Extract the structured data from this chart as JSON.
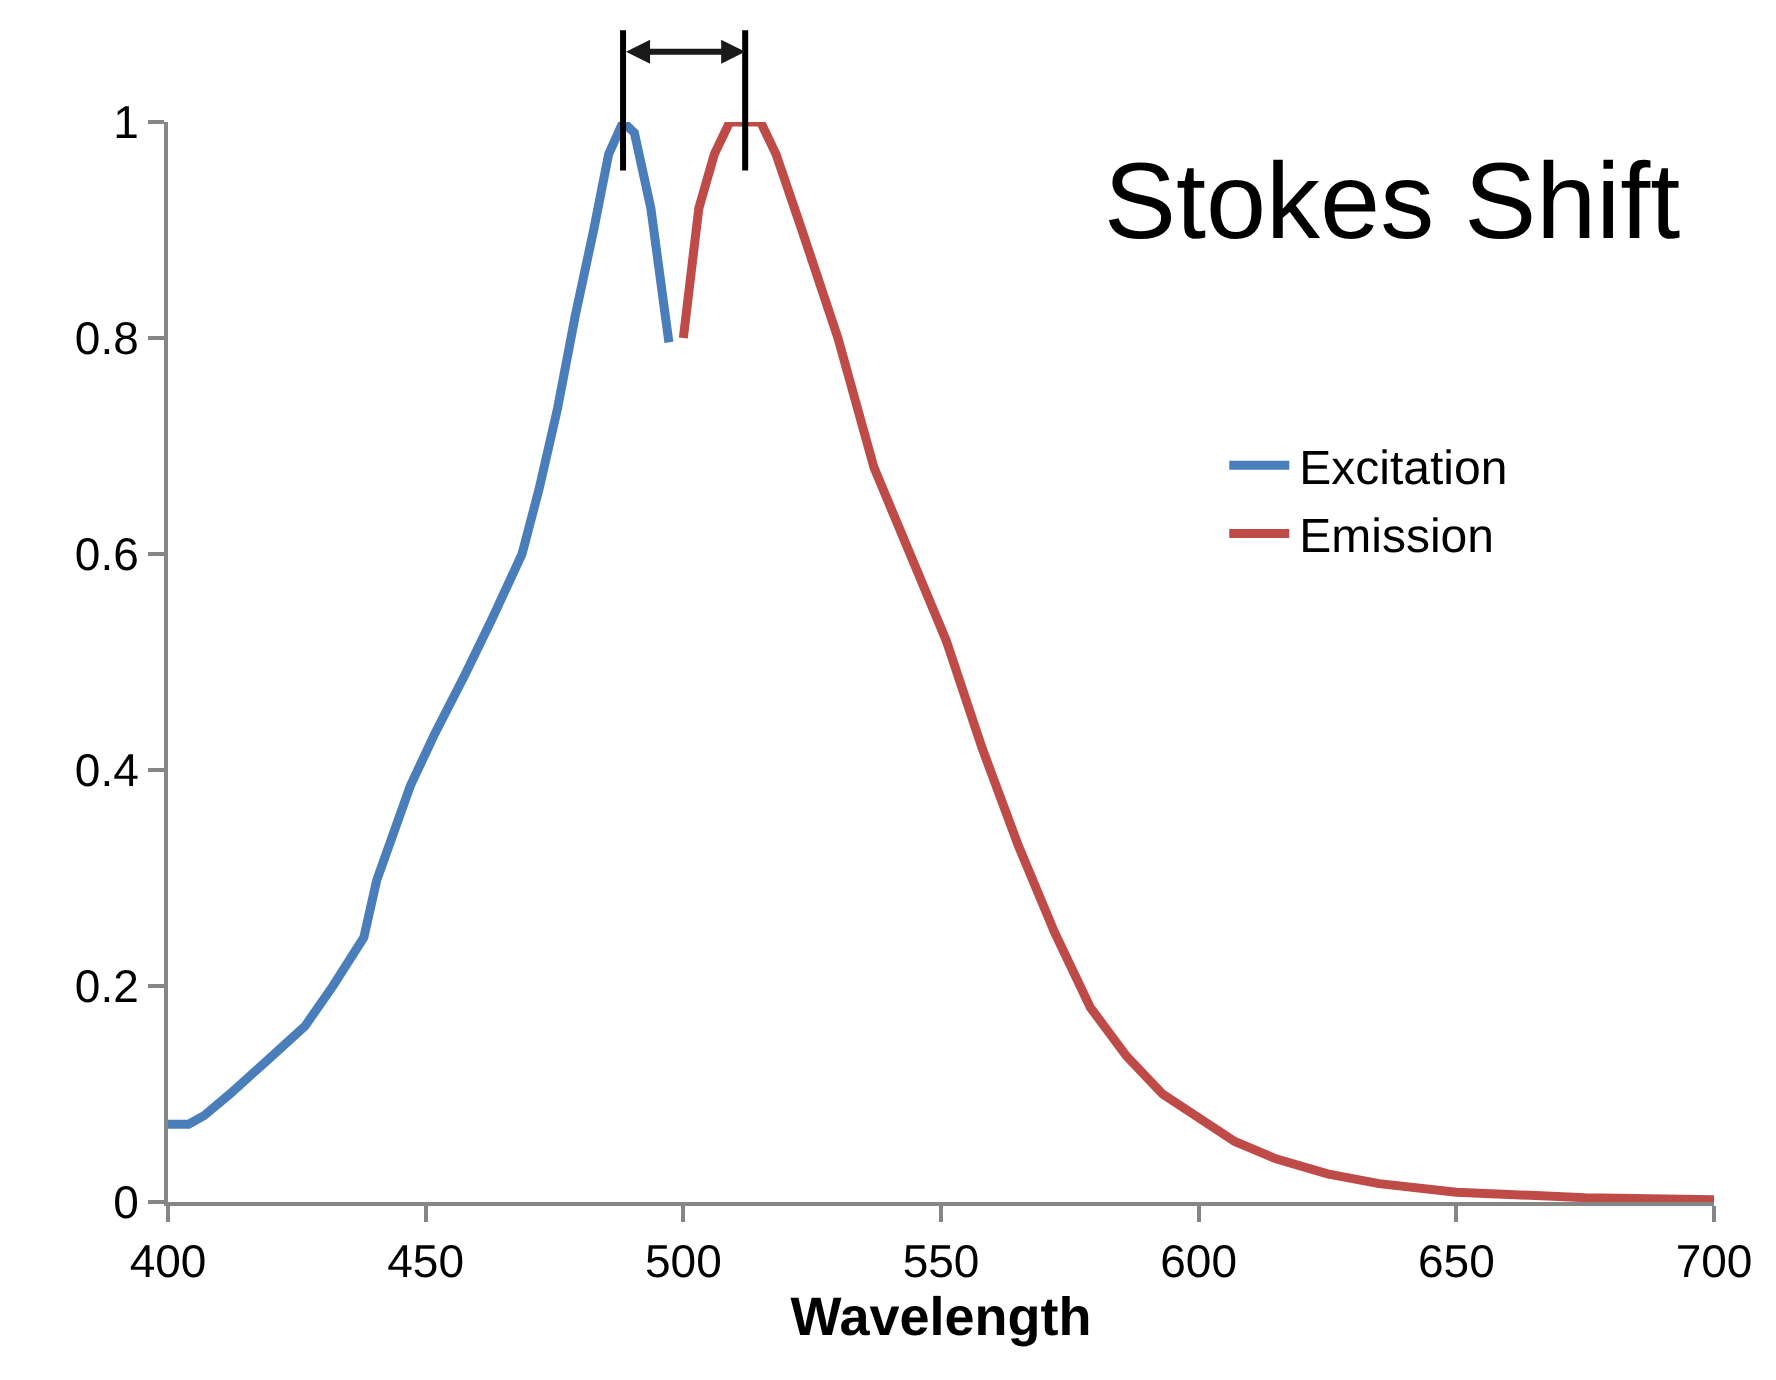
{
  "chart_data": {
    "type": "line",
    "xlabel": "Wavelength",
    "xlim": [
      400,
      700
    ],
    "xticks": [
      400,
      450,
      500,
      550,
      600,
      650,
      700
    ],
    "ylim": [
      0,
      1
    ],
    "yticks": [
      0,
      0.2,
      0.4,
      0.6,
      0.8,
      1
    ],
    "legend": "right",
    "marker": "none",
    "line_style": "solid",
    "annotations": [
      "Stokes Shift"
    ],
    "series": [
      {
        "name": "Excitation",
        "color": "#4a7ebb",
        "x": [
          400,
          404,
          407,
          412,
          419,
          426.6,
          432,
          438,
          440.5,
          447,
          451.7,
          457.5,
          462.9,
          468.7,
          472,
          475.6,
          479,
          482.6,
          485.5,
          488.3,
          490.5,
          493.7,
          497.2
        ],
        "values": [
          0.072,
          0.072,
          0.08,
          0.1,
          0.13,
          0.163,
          0.2,
          0.245,
          0.298,
          0.385,
          0.433,
          0.487,
          0.54,
          0.6,
          0.66,
          0.735,
          0.82,
          0.9,
          0.97,
          1.0,
          0.99,
          0.92,
          0.796
        ]
      },
      {
        "name": "Emission",
        "color": "#be4b48",
        "x": [
          500,
          503,
          506,
          509,
          515,
          518,
          523,
          530,
          537,
          544,
          551,
          558,
          565,
          572,
          579,
          586,
          593,
          600,
          607,
          615,
          625,
          635,
          650,
          675,
          700
        ],
        "values": [
          0.8,
          0.92,
          0.97,
          1.0,
          1.0,
          0.97,
          0.9,
          0.8,
          0.68,
          0.6,
          0.52,
          0.42,
          0.33,
          0.25,
          0.18,
          0.135,
          0.1,
          0.078,
          0.056,
          0.04,
          0.026,
          0.017,
          0.009,
          0.004,
          0.002
        ]
      }
    ]
  }
}
